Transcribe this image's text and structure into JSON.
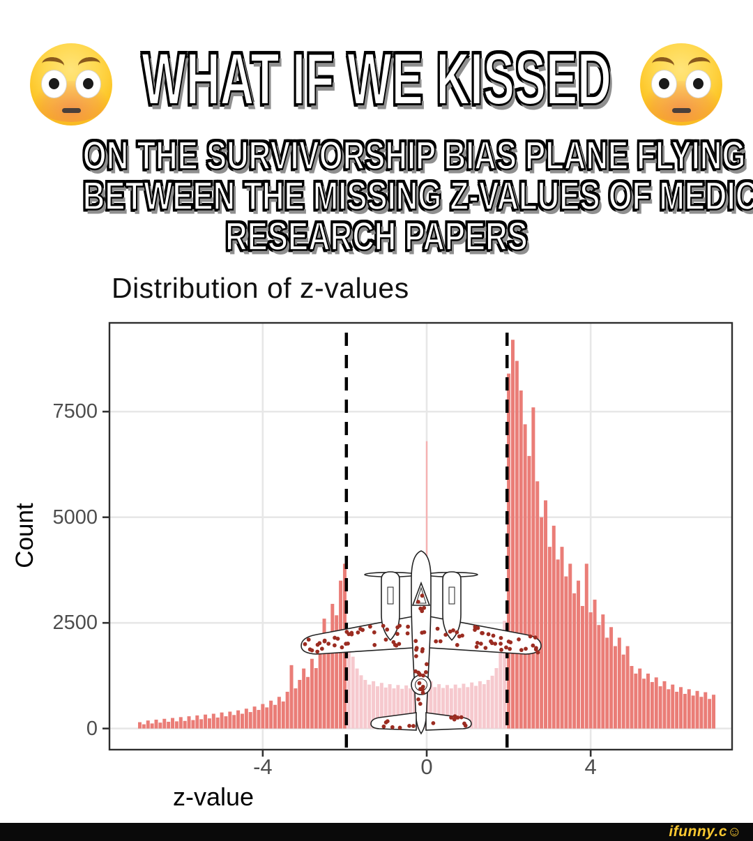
{
  "meme": {
    "title": "WHAT IF WE KISSED",
    "subtitle_lines": [
      "ON THE SURVIVORSHIP BIAS PLANE FLYING",
      "BETWEEN THE MISSING Z-VALUES OF MEDICAL",
      "RESEARCH PAPERS"
    ],
    "left_emoji": "flushed-face",
    "right_emoji": "flushed-face"
  },
  "watermark": {
    "brand": "ifunny.c",
    "smiley": "☺",
    "text_color": "#fac831",
    "bar_color": "#0a0a0a"
  },
  "chart_data": {
    "type": "bar",
    "title": "Distribution of z-values",
    "xlabel": "z-value",
    "ylabel": "Count",
    "x_ticks": [
      -4,
      0,
      4
    ],
    "x_tick_labels": [
      "-4",
      "0",
      "4"
    ],
    "y_ticks": [
      0,
      2500,
      5000,
      7500
    ],
    "y_tick_labels": [
      "0",
      "2500",
      "5000",
      "7500"
    ],
    "xlim": [
      -7.74,
      7.45
    ],
    "ylim": [
      -500,
      9600
    ],
    "grid": true,
    "legend_position": "none",
    "bin_width": 0.1,
    "significance_lines_x": [
      -1.96,
      1.96
    ],
    "faded_region_x": [
      -1.96,
      1.96
    ],
    "center_spike": {
      "z": 0.0,
      "count": 6800
    },
    "bar_color": "#ea7d77",
    "bar_color_faded": "#f6c9ce",
    "spike_color": "#f5b2b2",
    "grid_color": "#e7e7e7",
    "border_color": "#2e2e2e",
    "tick_color": "#333333",
    "dashed_line_color": "#000000",
    "bins": [
      [
        -7.0,
        150
      ],
      [
        -6.9,
        100
      ],
      [
        -6.8,
        190
      ],
      [
        -6.7,
        120
      ],
      [
        -6.6,
        210
      ],
      [
        -6.5,
        140
      ],
      [
        -6.4,
        230
      ],
      [
        -6.3,
        160
      ],
      [
        -6.2,
        250
      ],
      [
        -6.1,
        170
      ],
      [
        -6.0,
        270
      ],
      [
        -5.9,
        180
      ],
      [
        -5.8,
        290
      ],
      [
        -5.7,
        200
      ],
      [
        -5.6,
        310
      ],
      [
        -5.5,
        220
      ],
      [
        -5.4,
        330
      ],
      [
        -5.3,
        240
      ],
      [
        -5.2,
        350
      ],
      [
        -5.1,
        260
      ],
      [
        -5.0,
        380
      ],
      [
        -4.9,
        290
      ],
      [
        -4.8,
        400
      ],
      [
        -4.7,
        320
      ],
      [
        -4.6,
        430
      ],
      [
        -4.5,
        350
      ],
      [
        -4.4,
        470
      ],
      [
        -4.3,
        390
      ],
      [
        -4.2,
        520
      ],
      [
        -4.1,
        440
      ],
      [
        -4.0,
        580
      ],
      [
        -3.9,
        500
      ],
      [
        -3.8,
        660
      ],
      [
        -3.7,
        560
      ],
      [
        -3.6,
        750
      ],
      [
        -3.5,
        640
      ],
      [
        -3.4,
        870
      ],
      [
        -3.3,
        1500
      ],
      [
        -3.2,
        950
      ],
      [
        -3.1,
        1150
      ],
      [
        -3.0,
        1420
      ],
      [
        -2.9,
        1220
      ],
      [
        -2.8,
        1650
      ],
      [
        -2.7,
        1430
      ],
      [
        -2.6,
        2050
      ],
      [
        -2.5,
        2600
      ],
      [
        -2.4,
        2280
      ],
      [
        -2.3,
        2950
      ],
      [
        -2.2,
        2680
      ],
      [
        -2.1,
        3500
      ],
      [
        -2.0,
        3900
      ],
      [
        -1.9,
        2300
      ],
      [
        -1.8,
        1700
      ],
      [
        -1.7,
        1420
      ],
      [
        -1.6,
        1260
      ],
      [
        -1.5,
        1150
      ],
      [
        -1.4,
        1040
      ],
      [
        -1.3,
        1120
      ],
      [
        -1.2,
        1000
      ],
      [
        -1.1,
        1080
      ],
      [
        -1.0,
        970
      ],
      [
        -0.9,
        1050
      ],
      [
        -0.8,
        950
      ],
      [
        -0.7,
        1030
      ],
      [
        -0.6,
        940
      ],
      [
        -0.5,
        1020
      ],
      [
        -0.4,
        950
      ],
      [
        -0.3,
        1040
      ],
      [
        -0.2,
        970
      ],
      [
        -0.1,
        1110
      ],
      [
        0.0,
        1150
      ],
      [
        0.1,
        1120
      ],
      [
        0.2,
        980
      ],
      [
        0.3,
        1050
      ],
      [
        0.4,
        960
      ],
      [
        0.5,
        1030
      ],
      [
        0.6,
        950
      ],
      [
        0.7,
        1040
      ],
      [
        0.8,
        960
      ],
      [
        0.9,
        1060
      ],
      [
        1.0,
        980
      ],
      [
        1.1,
        1090
      ],
      [
        1.2,
        1010
      ],
      [
        1.3,
        1120
      ],
      [
        1.4,
        1050
      ],
      [
        1.5,
        1150
      ],
      [
        1.6,
        1250
      ],
      [
        1.7,
        1430
      ],
      [
        1.8,
        1780
      ],
      [
        1.9,
        2550
      ],
      [
        2.0,
        8400
      ],
      [
        2.1,
        9200
      ],
      [
        2.2,
        8700
      ],
      [
        2.3,
        8000
      ],
      [
        2.4,
        7200
      ],
      [
        2.5,
        6450
      ],
      [
        2.6,
        7600
      ],
      [
        2.7,
        5850
      ],
      [
        2.8,
        5000
      ],
      [
        2.9,
        5400
      ],
      [
        3.0,
        4300
      ],
      [
        3.1,
        4800
      ],
      [
        3.2,
        4000
      ],
      [
        3.3,
        4300
      ],
      [
        3.4,
        3600
      ],
      [
        3.5,
        3900
      ],
      [
        3.6,
        3200
      ],
      [
        3.7,
        3500
      ],
      [
        3.8,
        2900
      ],
      [
        3.9,
        3900
      ],
      [
        4.0,
        2750
      ],
      [
        4.1,
        3050
      ],
      [
        4.2,
        2450
      ],
      [
        4.3,
        2700
      ],
      [
        4.4,
        2150
      ],
      [
        4.5,
        2400
      ],
      [
        4.6,
        1950
      ],
      [
        4.7,
        2150
      ],
      [
        4.8,
        1750
      ],
      [
        4.9,
        1950
      ],
      [
        5.0,
        1480
      ],
      [
        5.1,
        1300
      ],
      [
        5.2,
        1420
      ],
      [
        5.3,
        1180
      ],
      [
        5.4,
        1300
      ],
      [
        5.5,
        1100
      ],
      [
        5.6,
        1210
      ],
      [
        5.7,
        1000
      ],
      [
        5.8,
        1120
      ],
      [
        5.9,
        930
      ],
      [
        6.0,
        1040
      ],
      [
        6.1,
        870
      ],
      [
        6.2,
        980
      ],
      [
        6.3,
        820
      ],
      [
        6.4,
        930
      ],
      [
        6.5,
        780
      ],
      [
        6.6,
        890
      ],
      [
        6.7,
        750
      ],
      [
        6.8,
        860
      ],
      [
        6.9,
        700
      ],
      [
        7.0,
        800
      ]
    ]
  },
  "plane": {
    "name": "survivorship-bias-bomber",
    "outline_color": "#222222",
    "fill_color": "#ffffff",
    "bullet_hole_color": "#9b2c21",
    "bullet_holes_wings_each": 40,
    "bullet_holes_fuselage": 22,
    "bullet_holes_tail": 15,
    "bullet_holes_nose": 5
  }
}
